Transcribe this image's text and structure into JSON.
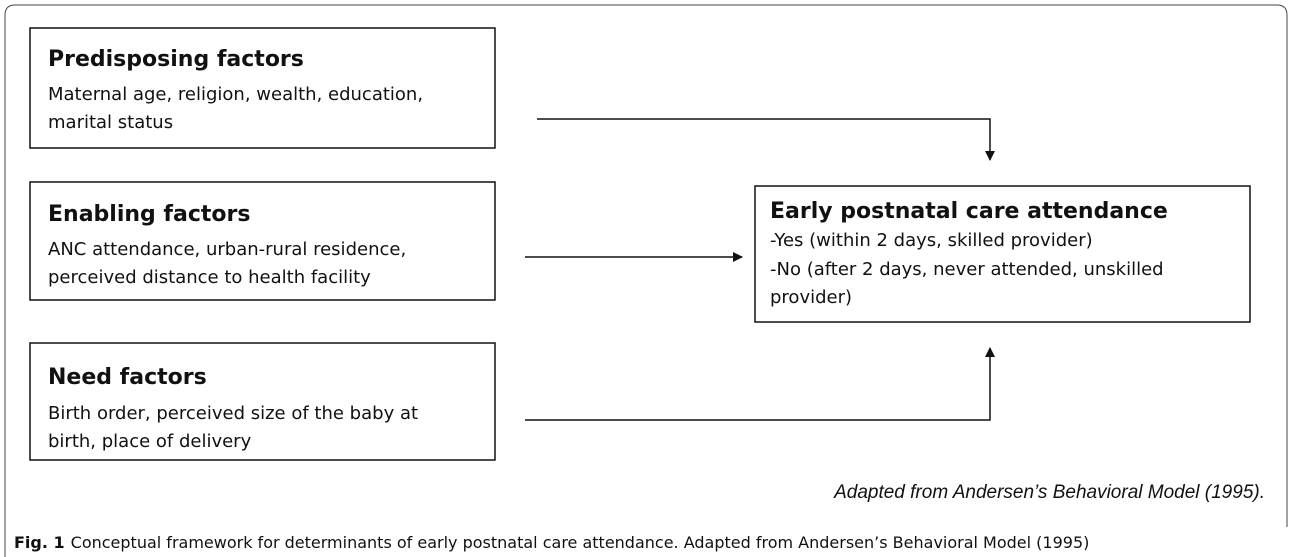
{
  "nodes": [
    {
      "title": "Predisposing factors",
      "lines": [
        "Maternal age, religion, wealth, education,",
        "marital status"
      ]
    },
    {
      "title": "Enabling factors",
      "lines": [
        "ANC attendance, urban-rural residence,",
        "perceived distance to health facility"
      ]
    },
    {
      "title": "Need factors",
      "lines": [
        "Birth order, perceived size of the baby at",
        "birth, place of delivery"
      ]
    },
    {
      "title": "Early postnatal care attendance",
      "lines": [
        "-Yes (within 2 days, skilled provider)",
        "-No (after 2 days, never attended, unskilled",
        "provider)"
      ]
    }
  ],
  "note": "Adapted from Andersen’s Behavioral Model (1995).",
  "caption": {
    "label": "Fig. 1",
    "text": "Conceptual framework for determinants of early postnatal care attendance. Adapted from Andersen’s Behavioral Model (1995)"
  }
}
